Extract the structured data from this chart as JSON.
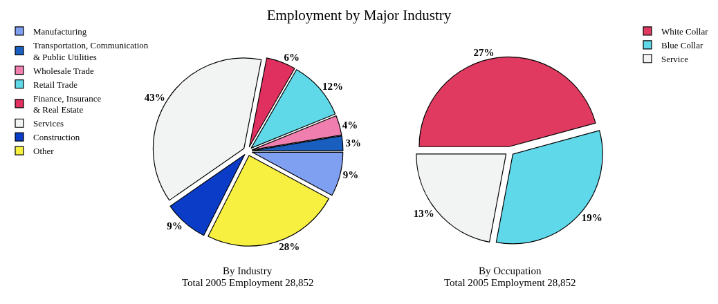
{
  "chart_data": [
    {
      "type": "pie",
      "title": "Employment by Major Industry",
      "categories": [
        "Manufacturing",
        "Transportation, Communication\n& Public Utilities",
        "Wholesale Trade",
        "Retail Trade",
        "Finance, Insurance\n& Real Estate",
        "Services",
        "Construction",
        "Other"
      ],
      "values": [
        9,
        3,
        4,
        12,
        6,
        43,
        9,
        28
      ],
      "value_labels": [
        "9%",
        "3%",
        "4%",
        "12%",
        "6%",
        "43%",
        "9%",
        "28%"
      ],
      "colors": [
        "#7f9ff0",
        "#1a5fc0",
        "#f07fb0",
        "#5fd8e8",
        "#e03060",
        "#f2f4f4",
        "#0a3cc8",
        "#f8f040"
      ],
      "legend": "top left",
      "annotations": [
        "By Industry",
        "Total 2005 Employment 28,852"
      ]
    },
    {
      "type": "pie",
      "categories": [
        "White Collar",
        "Blue Collar",
        "Service"
      ],
      "values": [
        27,
        19,
        13
      ],
      "value_labels": [
        "27%",
        "19%",
        "13%"
      ],
      "colors": [
        "#e03a60",
        "#5fd8ea",
        "#f2f4f4"
      ],
      "legend": "top right",
      "annotations": [
        "By Occupation",
        "Total 2005 Employment 28,852"
      ]
    }
  ]
}
